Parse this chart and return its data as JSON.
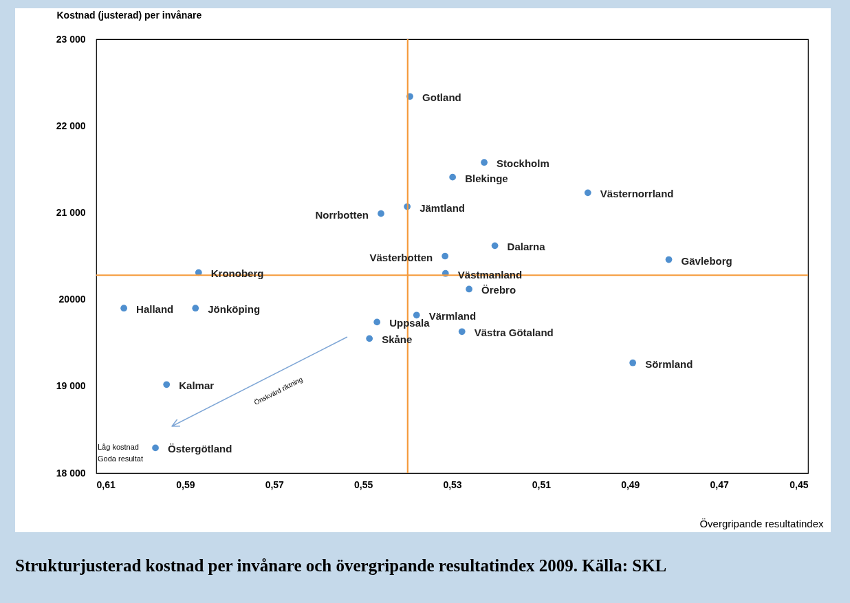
{
  "chart_data": {
    "type": "scatter",
    "title": "Strukturjusterad kostnad per invånare och övergripande resultatindex 2009. Källa: SKL",
    "xlabel": "Övergripande resultatindex",
    "ylabel": "Kostnad (justerad) per invånare",
    "x": [
      0.5395,
      0.5228,
      0.5299,
      0.4995,
      0.5401,
      0.546,
      0.5204,
      0.5316,
      0.4813,
      0.587,
      0.5315,
      0.5262,
      0.6038,
      0.5877,
      0.538,
      0.5469,
      0.5278,
      0.5486,
      0.4894,
      0.5942,
      0.5967
    ],
    "values": [
      22340,
      21580,
      21410,
      21230,
      21070,
      20990,
      20620,
      20500,
      20460,
      20310,
      20300,
      20120,
      19900,
      19900,
      19820,
      19740,
      19630,
      19550,
      19270,
      19020,
      18290
    ],
    "color": "#4f8fcf",
    "marker": "circle",
    "xlim": [
      0.61,
      0.45
    ],
    "ylim": [
      18000,
      23000
    ],
    "xticks": [
      {
        "value": 0.61,
        "label": "0,61"
      },
      {
        "value": 0.59,
        "label": "0,59"
      },
      {
        "value": 0.57,
        "label": "0,57"
      },
      {
        "value": 0.55,
        "label": "0,55"
      },
      {
        "value": 0.53,
        "label": "0,53"
      },
      {
        "value": 0.51,
        "label": "0,51"
      },
      {
        "value": 0.49,
        "label": "0,49"
      },
      {
        "value": 0.47,
        "label": "0,47"
      },
      {
        "value": 0.45,
        "label": "0,45"
      }
    ],
    "yticks": [
      {
        "value": 18000,
        "label": "18 000"
      },
      {
        "value": 19000,
        "label": "19 000"
      },
      {
        "value": 20000,
        "label": "20000"
      },
      {
        "value": 21000,
        "label": "21 000"
      },
      {
        "value": 22000,
        "label": "22 000"
      },
      {
        "value": 23000,
        "label": "23 000"
      }
    ],
    "grid": false,
    "ref_lines": [
      {
        "axis": "x",
        "value": 0.54,
        "color": "#f59a3b"
      },
      {
        "axis": "y",
        "value": 20280,
        "color": "#f59a3b"
      }
    ],
    "annotations": [
      {
        "text": "Gotland",
        "x": 0.5395,
        "y": 22340
      },
      {
        "text": "Stockholm",
        "x": 0.5228,
        "y": 21580
      },
      {
        "text": "Blekinge",
        "x": 0.5299,
        "y": 21410
      },
      {
        "text": "Västernorrland",
        "x": 0.4995,
        "y": 21230
      },
      {
        "text": "Jämtland",
        "x": 0.5401,
        "y": 21070
      },
      {
        "text": "Norrbotten",
        "x": 0.546,
        "y": 20990
      },
      {
        "text": "Dalarna",
        "x": 0.5204,
        "y": 20620
      },
      {
        "text": "Västerbotten",
        "x": 0.5316,
        "y": 20500
      },
      {
        "text": "Gävleborg",
        "x": 0.4813,
        "y": 20460
      },
      {
        "text": "Kronoberg",
        "x": 0.587,
        "y": 20310
      },
      {
        "text": "Västmanland",
        "x": 0.5315,
        "y": 20300
      },
      {
        "text": "Örebro",
        "x": 0.5262,
        "y": 20120
      },
      {
        "text": "Halland",
        "x": 0.6038,
        "y": 19900
      },
      {
        "text": "Jönköping",
        "x": 0.5877,
        "y": 19900
      },
      {
        "text": "Värmland",
        "x": 0.538,
        "y": 19820
      },
      {
        "text": "Uppsala",
        "x": 0.5469,
        "y": 19740
      },
      {
        "text": "Västra Götaland",
        "x": 0.5278,
        "y": 19630
      },
      {
        "text": "Skåne",
        "x": 0.5486,
        "y": 19550
      },
      {
        "text": "Sörmland",
        "x": 0.4894,
        "y": 19270
      },
      {
        "text": "Kalmar",
        "x": 0.5942,
        "y": 19020
      },
      {
        "text": "Östergötland",
        "x": 0.5967,
        "y": 18290
      },
      "Önskvärd riktning",
      "Låg kostnad\nGoda resultat"
    ]
  }
}
